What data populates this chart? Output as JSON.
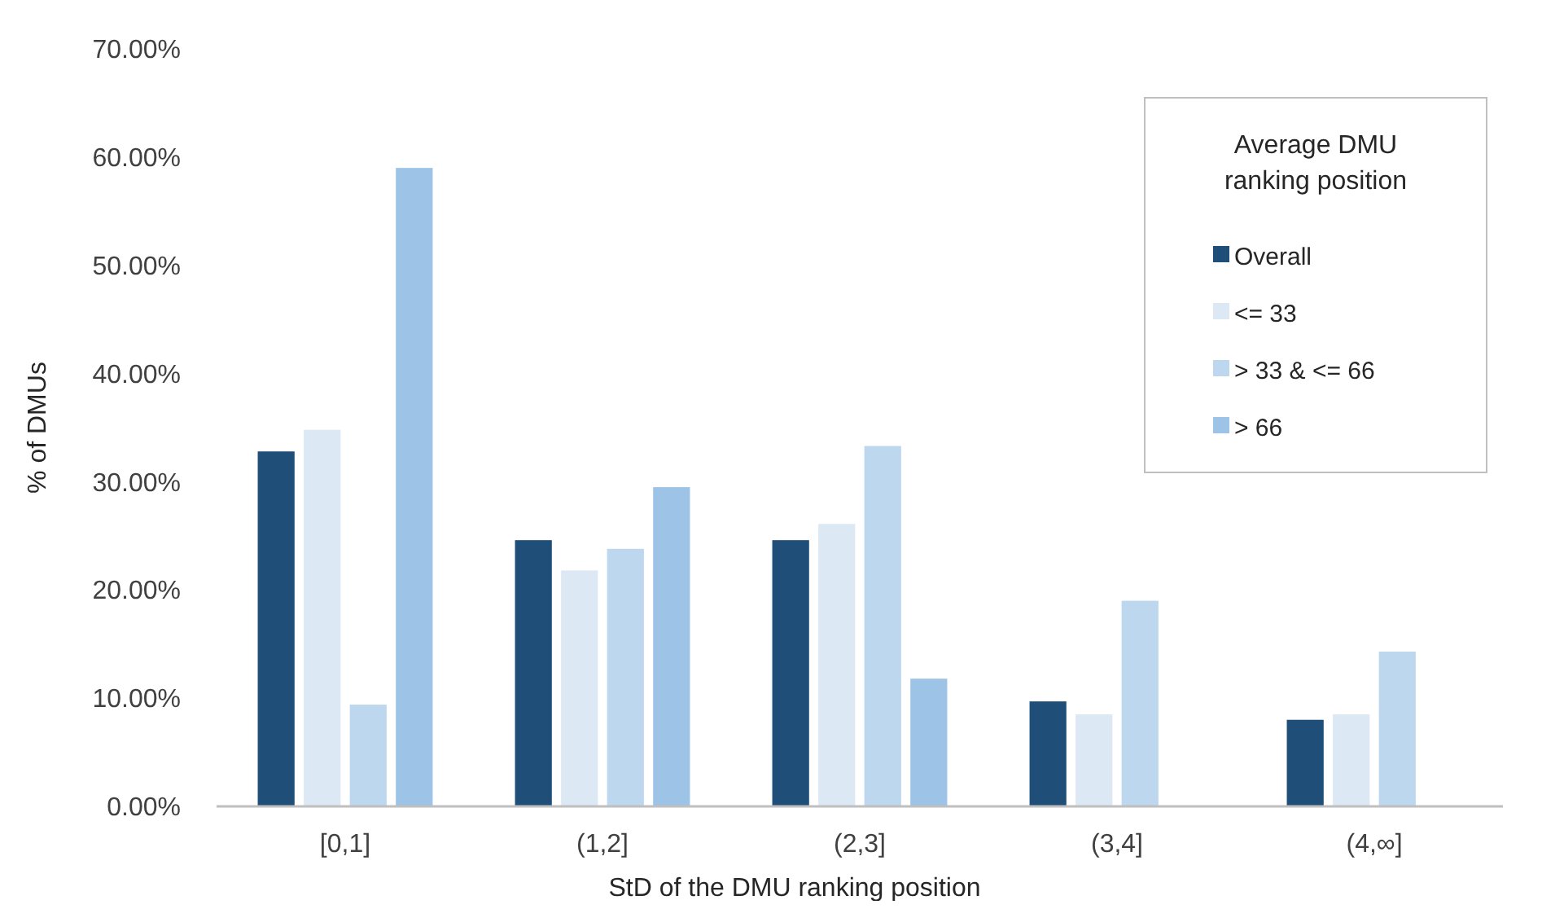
{
  "chart_data": {
    "type": "bar",
    "xlabel": "StD of the DMU ranking position",
    "ylabel": "% of DMUs",
    "legend_title": "Average DMU ranking position",
    "categories": [
      "[0,1]",
      "(1,2]",
      "(2,3]",
      "(3,4]",
      "(4,∞]"
    ],
    "series": [
      {
        "name": "Overall",
        "color": "#1f4e79",
        "values": [
          32.8,
          24.6,
          24.6,
          9.7,
          8.0
        ]
      },
      {
        "name": "<= 33",
        "color": "#dde8f5",
        "values": [
          34.8,
          21.8,
          26.1,
          8.5,
          8.5
        ]
      },
      {
        "name": "> 33 & <= 66",
        "color": "#bdd7ee",
        "values": [
          9.4,
          23.8,
          33.3,
          19.0,
          14.3
        ]
      },
      {
        "name": "> 66",
        "color": "#9dc3e6",
        "values": [
          59.0,
          29.5,
          11.8,
          null,
          null
        ]
      }
    ],
    "ylim": [
      0,
      70
    ],
    "yticks": [
      {
        "value": 0,
        "label": "0.00%"
      },
      {
        "value": 10,
        "label": "10.00%"
      },
      {
        "value": 20,
        "label": "20.00%"
      },
      {
        "value": 30,
        "label": "30.00%"
      },
      {
        "value": 40,
        "label": "40.00%"
      },
      {
        "value": 50,
        "label": "50.00%"
      },
      {
        "value": 60,
        "label": "60.00%"
      },
      {
        "value": 70,
        "label": "70.00%"
      }
    ],
    "grid": false,
    "legend": "top right"
  }
}
